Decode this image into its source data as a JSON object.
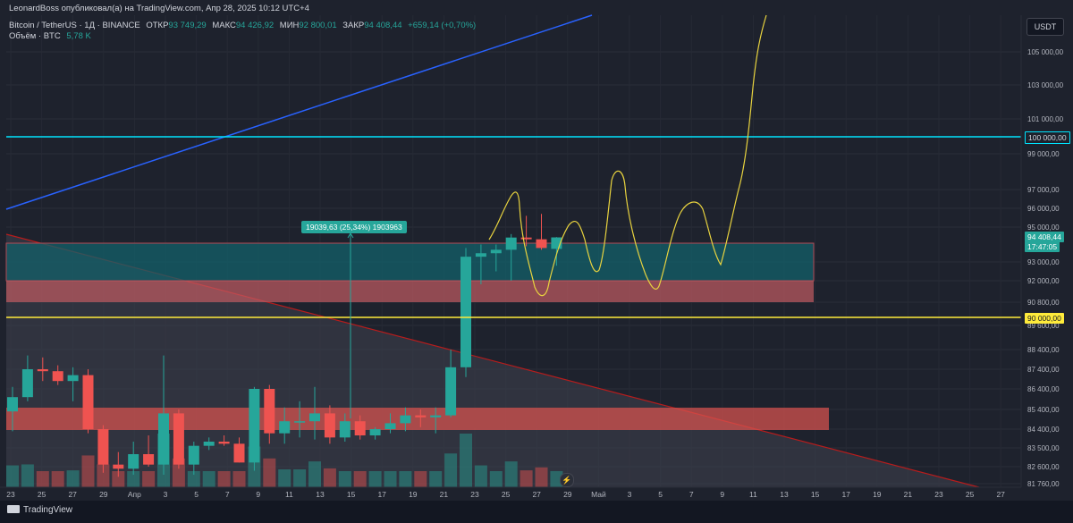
{
  "header": {
    "attribution": "LeonardBoss опубликовал(а) на TradingView.com, Апр 28, 2025 10:12 UTC+4",
    "symbol": "Bitcoin / TetherUS · 1Д · BINANCE",
    "open_label": "ОТКР",
    "open_value": "93 749,29",
    "high_label": "МАКС",
    "high_value": "94 426,92",
    "low_label": "МИН",
    "low_value": "92 800,01",
    "close_label": "ЗАКР",
    "close_value": "94 408,44",
    "change": "+659,14 (+0,70%)",
    "volume_label": "Объём · BTC",
    "volume_value": "5,78 K"
  },
  "currency_button": "USDT",
  "footer": {
    "brand": "TradingView"
  },
  "annotations": {
    "measure_label": "19039,63 (25,34%) 1903963"
  },
  "price_tags": {
    "level_100k": "100 000,00",
    "current_price": "94 408,44",
    "countdown": "17:47:05",
    "level_90k": "90 000,00"
  },
  "colors": {
    "background": "#1e222d",
    "up": "#26a69a",
    "down": "#ef5350",
    "trendline_blue": "#2962ff",
    "level_cyan": "#00e5ff",
    "level_yellow": "#ffeb3b",
    "path_yellow": "#e8d33f"
  },
  "icons": [
    "tradingview-logo-icon",
    "lightning-icon"
  ],
  "chart_data": {
    "type": "candlestick",
    "symbol": "Bitcoin / TetherUS",
    "timeframe": "1Д",
    "y_axis_labels": [
      "105 000,00",
      "103 000,00",
      "101 000,00",
      "99 000,00",
      "97 000,00",
      "96 000,00",
      "95 000,00",
      "93 000,00",
      "92 000,00",
      "90 800,00",
      "89 600,00",
      "88 400,00",
      "87 400,00",
      "86 400,00",
      "85 400,00",
      "84 400,00",
      "83 500,00",
      "82 600,00",
      "81 760,00"
    ],
    "x_axis_labels": [
      "23",
      "25",
      "27",
      "29",
      "Апр",
      "3",
      "5",
      "7",
      "9",
      "11",
      "13",
      "15",
      "17",
      "19",
      "21",
      "23",
      "25",
      "27",
      "29",
      "Май",
      "3",
      "5",
      "7",
      "9",
      "11",
      "13",
      "15",
      "17",
      "19",
      "21",
      "23",
      "25",
      "27"
    ],
    "horizontal_levels": [
      100000,
      90000
    ],
    "candles": [
      {
        "o": 85300,
        "h": 86500,
        "l": 84300,
        "c": 86000
      },
      {
        "o": 86000,
        "h": 88100,
        "l": 85800,
        "c": 87400
      },
      {
        "o": 87400,
        "h": 88000,
        "l": 86800,
        "c": 87300
      },
      {
        "o": 87300,
        "h": 87600,
        "l": 86600,
        "c": 86800
      },
      {
        "o": 86800,
        "h": 87500,
        "l": 85800,
        "c": 87100
      },
      {
        "o": 87100,
        "h": 87400,
        "l": 84200,
        "c": 84400
      },
      {
        "o": 84400,
        "h": 84600,
        "l": 82300,
        "c": 82700
      },
      {
        "o": 82700,
        "h": 83300,
        "l": 82100,
        "c": 82500
      },
      {
        "o": 82500,
        "h": 83800,
        "l": 82200,
        "c": 83200
      },
      {
        "o": 83200,
        "h": 84100,
        "l": 82600,
        "c": 82700
      },
      {
        "o": 82700,
        "h": 88100,
        "l": 82200,
        "c": 85200
      },
      {
        "o": 85200,
        "h": 85400,
        "l": 82500,
        "c": 82700
      },
      {
        "o": 82700,
        "h": 83800,
        "l": 82200,
        "c": 83600
      },
      {
        "o": 83600,
        "h": 84000,
        "l": 83400,
        "c": 83800
      },
      {
        "o": 83800,
        "h": 84100,
        "l": 83600,
        "c": 83700
      },
      {
        "o": 83700,
        "h": 84000,
        "l": 82800,
        "c": 82800
      },
      {
        "o": 82800,
        "h": 86500,
        "l": 82400,
        "c": 86400
      },
      {
        "o": 86400,
        "h": 86600,
        "l": 83700,
        "c": 84200
      },
      {
        "o": 84200,
        "h": 85500,
        "l": 83700,
        "c": 84800
      },
      {
        "o": 84800,
        "h": 85800,
        "l": 84000,
        "c": 84800
      },
      {
        "o": 84800,
        "h": 86500,
        "l": 83900,
        "c": 85200
      },
      {
        "o": 85200,
        "h": 85600,
        "l": 83700,
        "c": 84000
      },
      {
        "o": 84000,
        "h": 85200,
        "l": 83800,
        "c": 84800
      },
      {
        "o": 84800,
        "h": 85100,
        "l": 83900,
        "c": 84100
      },
      {
        "o": 84100,
        "h": 84500,
        "l": 83900,
        "c": 84400
      },
      {
        "o": 84400,
        "h": 85200,
        "l": 84200,
        "c": 84700
      },
      {
        "o": 84700,
        "h": 85500,
        "l": 84300,
        "c": 85100
      },
      {
        "o": 85100,
        "h": 85400,
        "l": 84500,
        "c": 85000
      },
      {
        "o": 85000,
        "h": 85500,
        "l": 84200,
        "c": 85100
      },
      {
        "o": 85100,
        "h": 88400,
        "l": 85000,
        "c": 87500
      },
      {
        "o": 87500,
        "h": 93800,
        "l": 87000,
        "c": 93300
      },
      {
        "o": 93300,
        "h": 94000,
        "l": 91800,
        "c": 93500
      },
      {
        "o": 93500,
        "h": 94000,
        "l": 92500,
        "c": 93700
      },
      {
        "o": 93700,
        "h": 94600,
        "l": 92000,
        "c": 94400
      },
      {
        "o": 94400,
        "h": 95600,
        "l": 93900,
        "c": 94300
      },
      {
        "o": 94300,
        "h": 95700,
        "l": 93700,
        "c": 93800
      },
      {
        "o": 93749.29,
        "h": 94426.92,
        "l": 92800.01,
        "c": 94408.44
      }
    ],
    "volume_unit": "BTC"
  }
}
